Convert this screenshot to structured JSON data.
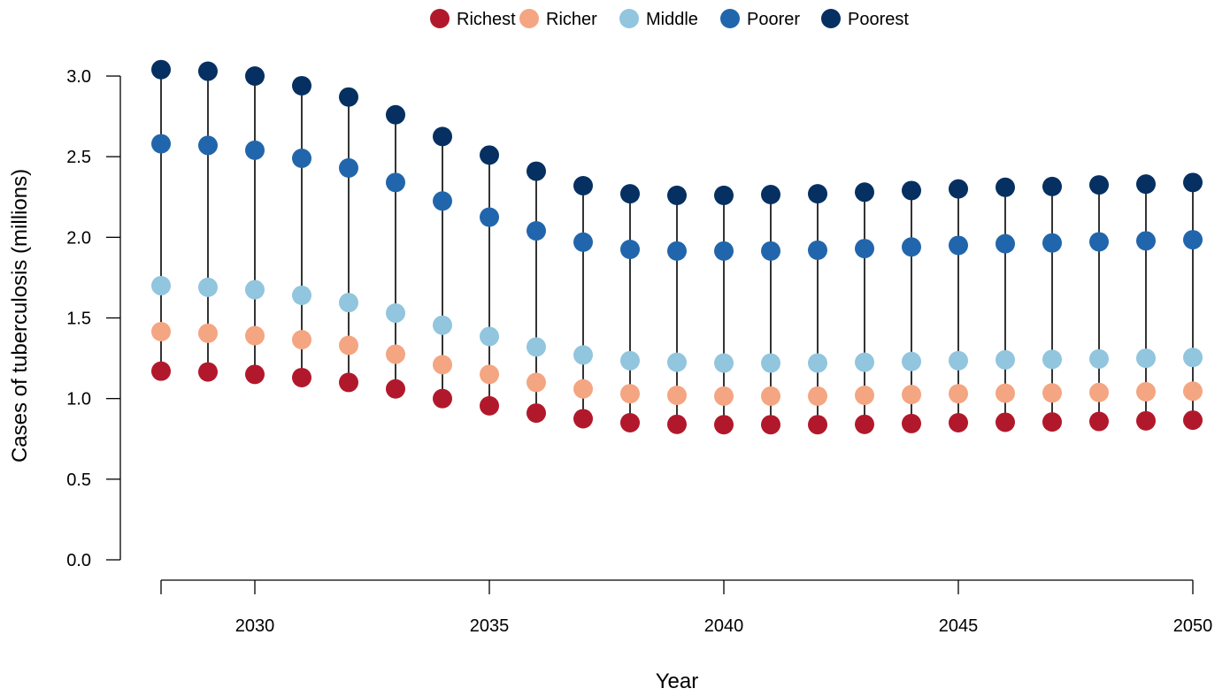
{
  "chart_data": {
    "type": "scatter",
    "title": "",
    "xlabel": "Year",
    "ylabel": "Cases of tuberculosis (millions)",
    "xlim": [
      2028,
      2050
    ],
    "ylim": [
      0,
      3.0
    ],
    "x_ticks": [
      2030,
      2035,
      2040,
      2045,
      2050
    ],
    "y_ticks": [
      0.0,
      0.5,
      1.0,
      1.5,
      2.0,
      2.5,
      3.0
    ],
    "y_tick_labels": [
      "0.0",
      "0.5",
      "1.0",
      "1.5",
      "2.0",
      "2.5",
      "3.0"
    ],
    "x_tick_labels": [
      "2030",
      "2035",
      "2040",
      "2045",
      "2050"
    ],
    "grid": false,
    "legend_position": "top-center",
    "vertical_range_lines": true,
    "x": [
      2028,
      2029,
      2030,
      2031,
      2032,
      2033,
      2034,
      2035,
      2036,
      2037,
      2038,
      2039,
      2040,
      2041,
      2042,
      2043,
      2044,
      2045,
      2046,
      2047,
      2048,
      2049,
      2050
    ],
    "series": [
      {
        "name": "Richest",
        "color": "#b2182b",
        "values": [
          1.17,
          1.165,
          1.15,
          1.13,
          1.1,
          1.06,
          1.0,
          0.955,
          0.91,
          0.875,
          0.85,
          0.84,
          0.838,
          0.838,
          0.838,
          0.84,
          0.845,
          0.85,
          0.853,
          0.855,
          0.858,
          0.862,
          0.866
        ]
      },
      {
        "name": "Richer",
        "color": "#f4a582",
        "values": [
          1.415,
          1.405,
          1.39,
          1.365,
          1.33,
          1.275,
          1.21,
          1.15,
          1.1,
          1.06,
          1.03,
          1.02,
          1.015,
          1.015,
          1.015,
          1.02,
          1.025,
          1.03,
          1.033,
          1.035,
          1.038,
          1.042,
          1.046
        ]
      },
      {
        "name": "Middle",
        "color": "#92c5de",
        "values": [
          1.7,
          1.69,
          1.675,
          1.64,
          1.595,
          1.53,
          1.455,
          1.385,
          1.32,
          1.27,
          1.235,
          1.225,
          1.22,
          1.22,
          1.22,
          1.225,
          1.23,
          1.235,
          1.24,
          1.243,
          1.246,
          1.25,
          1.255
        ]
      },
      {
        "name": "Poorer",
        "color": "#2166ac",
        "values": [
          2.58,
          2.57,
          2.54,
          2.49,
          2.43,
          2.34,
          2.225,
          2.125,
          2.04,
          1.97,
          1.925,
          1.915,
          1.915,
          1.915,
          1.92,
          1.93,
          1.94,
          1.95,
          1.96,
          1.965,
          1.972,
          1.978,
          1.985
        ]
      },
      {
        "name": "Poorest",
        "color": "#053061",
        "values": [
          3.04,
          3.03,
          3.0,
          2.94,
          2.87,
          2.76,
          2.625,
          2.51,
          2.41,
          2.32,
          2.27,
          2.26,
          2.26,
          2.265,
          2.27,
          2.28,
          2.29,
          2.3,
          2.31,
          2.315,
          2.325,
          2.33,
          2.34
        ]
      }
    ]
  }
}
